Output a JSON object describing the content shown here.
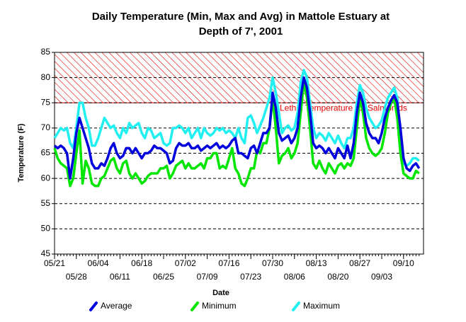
{
  "chart_data": {
    "type": "line",
    "title": [
      "Daily Temperature (Min, Max and Avg) in Mattole Estuary at",
      "Depth of 7', 2001"
    ],
    "x_label": "Date",
    "y_label": "Temperature (F)",
    "categories": [
      "05/21",
      null,
      null,
      null,
      null,
      null,
      null,
      "05/28",
      null,
      null,
      null,
      null,
      null,
      null,
      "06/04",
      null,
      null,
      null,
      null,
      null,
      null,
      "06/11",
      null,
      null,
      null,
      null,
      null,
      null,
      "06/18",
      null,
      null,
      null,
      null,
      null,
      null,
      "06/25",
      null,
      null,
      null,
      null,
      null,
      null,
      "07/02",
      null,
      null,
      null,
      null,
      null,
      null,
      "07/09",
      null,
      null,
      null,
      null,
      null,
      null,
      "07/16",
      null,
      null,
      null,
      null,
      null,
      null,
      "07/23",
      null,
      null,
      null,
      null,
      null,
      null,
      "07/30",
      null,
      null,
      null,
      null,
      null,
      null,
      "08/06",
      null,
      null,
      null,
      null,
      null,
      null,
      "08/13",
      null,
      null,
      null,
      null,
      null,
      null,
      "08/20",
      null,
      null,
      null,
      null,
      null,
      null,
      "08/27",
      null,
      null,
      null,
      null,
      null,
      null,
      "09/03",
      null,
      null,
      null,
      null,
      null,
      null,
      "09/10",
      null,
      null,
      null,
      null,
      null
    ],
    "series": [
      {
        "name": "Average",
        "color": "#0000dd",
        "values": [
          66.5,
          66,
          66.5,
          66,
          65,
          60,
          64,
          69,
          72,
          70,
          68,
          66,
          63,
          62,
          62,
          63,
          62.5,
          64,
          66,
          67,
          65,
          64,
          64.5,
          66,
          66,
          65,
          66,
          65,
          64,
          65,
          65,
          65.5,
          66.5,
          66,
          66,
          65.5,
          65,
          63,
          63.5,
          66,
          67,
          66.5,
          66.5,
          67,
          66,
          66,
          66.5,
          65.5,
          66,
          66.5,
          66,
          66.5,
          67,
          66,
          66.5,
          66,
          66.5,
          67.5,
          68,
          65,
          65,
          64.5,
          64,
          66,
          66.5,
          65,
          67,
          69,
          69,
          70,
          77,
          74,
          69,
          67.5,
          68,
          68.5,
          67,
          68,
          70,
          76,
          80,
          78,
          73,
          67,
          66,
          66.5,
          66,
          65,
          66,
          65,
          64,
          66,
          65,
          64,
          66.5,
          64,
          67,
          73,
          77,
          75,
          71,
          69,
          68,
          68,
          67,
          69,
          72,
          74,
          75.5,
          76.5,
          75,
          70,
          64,
          62,
          61.5,
          62.5,
          63,
          62
        ]
      },
      {
        "name": "Minimum",
        "color": "#00e600",
        "values": [
          66,
          64,
          63,
          62.5,
          62,
          58.5,
          60,
          65,
          69.5,
          59,
          63.5,
          62,
          59,
          58.5,
          58.5,
          60,
          60.5,
          62,
          63.5,
          64,
          62,
          61,
          63,
          63.5,
          61,
          60,
          61,
          60,
          59,
          59.5,
          60.5,
          61,
          61,
          61,
          62,
          62,
          62.5,
          60,
          61,
          62.5,
          63,
          63.5,
          62,
          63,
          62,
          62,
          62.5,
          63,
          62,
          64,
          64,
          65,
          65,
          62,
          62.5,
          62,
          64,
          66,
          62,
          61,
          59,
          58.5,
          60,
          62,
          62,
          65.5,
          65,
          67,
          67,
          70,
          76,
          70,
          63,
          64.5,
          65,
          66,
          64,
          65,
          67,
          73,
          79,
          76,
          70,
          63,
          62,
          63.5,
          62,
          61,
          63,
          62,
          61,
          62.5,
          63,
          62,
          63,
          62.5,
          64,
          70,
          76,
          73,
          68,
          66,
          65,
          64.5,
          65,
          66,
          69,
          73,
          75,
          76,
          72,
          65,
          61,
          60.5,
          60,
          60,
          61.5,
          61
        ]
      },
      {
        "name": "Maximum",
        "color": "#22f0f0",
        "values": [
          68,
          69,
          70,
          69.5,
          70,
          67,
          66,
          70,
          75,
          75,
          72,
          70,
          66.5,
          66.5,
          68,
          70,
          72,
          71,
          70,
          70.5,
          69,
          68,
          70,
          69,
          71,
          70,
          70.5,
          71,
          69,
          68,
          70,
          69.5,
          68,
          68.5,
          69,
          67,
          66.5,
          67,
          70,
          70,
          70.5,
          70,
          69,
          70,
          68,
          69,
          70,
          68,
          70,
          69,
          68.5,
          69,
          70,
          69.5,
          70,
          69,
          69.5,
          69,
          68,
          70,
          68,
          67,
          72,
          72.5,
          71,
          69,
          70.5,
          72,
          74,
          76,
          80,
          77,
          73,
          69,
          70,
          70.5,
          69.5,
          70,
          73,
          79,
          81.5,
          80,
          75,
          70,
          68,
          69,
          68.5,
          67.5,
          69,
          68,
          67,
          68.5,
          67,
          66,
          68,
          68,
          70,
          75,
          78.5,
          77,
          74,
          72,
          71,
          70,
          70.5,
          71.5,
          74,
          76,
          77,
          78,
          76,
          68,
          63,
          62.5,
          63,
          64,
          64,
          63.5
        ]
      }
    ],
    "ylim": [
      45,
      85
    ],
    "yticks": [
      45,
      50,
      55,
      60,
      65,
      70,
      75,
      80,
      85
    ],
    "grid": true,
    "legend": "bottom",
    "band": {
      "range": [
        75,
        85
      ],
      "label": "Lethal Temperature for Salmonids",
      "color": "#e00000"
    }
  }
}
